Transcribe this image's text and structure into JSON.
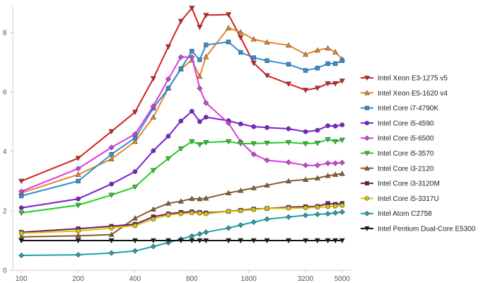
{
  "chart_data": {
    "type": "line",
    "title": "",
    "xlabel": "",
    "ylabel": "",
    "x_scale": "log",
    "xlim": [
      90,
      5600
    ],
    "ylim": [
      0,
      8.9
    ],
    "grid": false,
    "legend_position": "right",
    "x_ticks": [
      {
        "value": 100,
        "label": "100"
      },
      {
        "value": 200,
        "label": "200"
      },
      {
        "value": 400,
        "label": "400"
      },
      {
        "value": 800,
        "label": "800"
      },
      {
        "value": 1600,
        "label": "1600"
      },
      {
        "value": 3200,
        "label": "3200"
      },
      {
        "value": 5000,
        "label": "5000"
      }
    ],
    "y_ticks": [
      {
        "value": 0,
        "label": "0"
      },
      {
        "value": 2,
        "label": "2"
      },
      {
        "value": 4,
        "label": "4"
      },
      {
        "value": 6,
        "label": "6"
      },
      {
        "value": 8,
        "label": "8"
      }
    ],
    "series": [
      {
        "name": "Intel Xeon E3-1275 v5",
        "color": "#d42020",
        "marker": "triangle-down",
        "points": [
          [
            100,
            3.0
          ],
          [
            200,
            3.77
          ],
          [
            300,
            4.67
          ],
          [
            400,
            5.32
          ],
          [
            500,
            6.45
          ],
          [
            600,
            7.52
          ],
          [
            700,
            8.38
          ],
          [
            800,
            8.82
          ],
          [
            880,
            8.18
          ],
          [
            950,
            8.58
          ],
          [
            1250,
            8.6
          ],
          [
            1450,
            7.83
          ],
          [
            1700,
            6.97
          ],
          [
            2000,
            6.55
          ],
          [
            2600,
            6.27
          ],
          [
            3200,
            6.06
          ],
          [
            3700,
            6.13
          ],
          [
            4200,
            6.28
          ],
          [
            4600,
            6.28
          ],
          [
            5000,
            6.37
          ]
        ]
      },
      {
        "name": "Intel Xeon E5-1620 v4",
        "color": "#e88524",
        "marker": "triangle-up",
        "points": [
          [
            100,
            2.6
          ],
          [
            200,
            3.22
          ],
          [
            300,
            3.74
          ],
          [
            400,
            4.33
          ],
          [
            500,
            5.15
          ],
          [
            600,
            6.12
          ],
          [
            700,
            6.77
          ],
          [
            800,
            7.07
          ],
          [
            880,
            6.52
          ],
          [
            950,
            7.18
          ],
          [
            1250,
            8.15
          ],
          [
            1450,
            8.01
          ],
          [
            1700,
            7.77
          ],
          [
            2000,
            7.67
          ],
          [
            2600,
            7.57
          ],
          [
            3200,
            7.26
          ],
          [
            3700,
            7.4
          ],
          [
            4200,
            7.47
          ],
          [
            4600,
            7.34
          ],
          [
            5000,
            7.1
          ]
        ]
      },
      {
        "name": "Intel Core i7-4790K",
        "color": "#2f8fd8",
        "marker": "square",
        "points": [
          [
            100,
            2.5
          ],
          [
            200,
            3.0
          ],
          [
            300,
            3.9
          ],
          [
            400,
            4.45
          ],
          [
            500,
            5.45
          ],
          [
            600,
            6.12
          ],
          [
            700,
            6.78
          ],
          [
            800,
            7.37
          ],
          [
            880,
            7.08
          ],
          [
            950,
            7.58
          ],
          [
            1250,
            7.68
          ],
          [
            1450,
            7.33
          ],
          [
            1700,
            7.15
          ],
          [
            2000,
            7.05
          ],
          [
            2600,
            6.93
          ],
          [
            3200,
            6.72
          ],
          [
            3700,
            6.8
          ],
          [
            4200,
            6.95
          ],
          [
            4600,
            6.95
          ],
          [
            5000,
            7.05
          ]
        ]
      },
      {
        "name": "Intel Core i5-4590",
        "color": "#7a1fd1",
        "marker": "circle",
        "points": [
          [
            100,
            2.1
          ],
          [
            200,
            2.4
          ],
          [
            300,
            2.9
          ],
          [
            400,
            3.32
          ],
          [
            500,
            4.02
          ],
          [
            600,
            4.51
          ],
          [
            700,
            5.02
          ],
          [
            800,
            5.35
          ],
          [
            880,
            5.0
          ],
          [
            950,
            5.15
          ],
          [
            1250,
            5.03
          ],
          [
            1450,
            4.92
          ],
          [
            1700,
            4.83
          ],
          [
            2000,
            4.8
          ],
          [
            2600,
            4.76
          ],
          [
            3200,
            4.66
          ],
          [
            3700,
            4.71
          ],
          [
            4200,
            4.86
          ],
          [
            4600,
            4.85
          ],
          [
            5000,
            4.89
          ]
        ]
      },
      {
        "name": "Intel Core i5-6500",
        "color": "#dd38e0",
        "marker": "diamond",
        "points": [
          [
            100,
            2.65
          ],
          [
            200,
            3.42
          ],
          [
            300,
            4.13
          ],
          [
            400,
            4.58
          ],
          [
            500,
            5.52
          ],
          [
            600,
            6.43
          ],
          [
            700,
            7.17
          ],
          [
            800,
            7.17
          ],
          [
            880,
            6.12
          ],
          [
            950,
            5.63
          ],
          [
            1250,
            4.95
          ],
          [
            1450,
            4.32
          ],
          [
            1700,
            3.9
          ],
          [
            2000,
            3.7
          ],
          [
            2600,
            3.63
          ],
          [
            3200,
            3.53
          ],
          [
            3700,
            3.53
          ],
          [
            4200,
            3.6
          ],
          [
            4600,
            3.6
          ],
          [
            5000,
            3.62
          ]
        ]
      },
      {
        "name": "Intel Core i5-3570",
        "color": "#22cc22",
        "marker": "triangle-down",
        "points": [
          [
            100,
            1.93
          ],
          [
            200,
            2.19
          ],
          [
            300,
            2.53
          ],
          [
            400,
            2.8
          ],
          [
            500,
            3.36
          ],
          [
            600,
            3.76
          ],
          [
            700,
            4.09
          ],
          [
            800,
            4.33
          ],
          [
            880,
            4.23
          ],
          [
            950,
            4.3
          ],
          [
            1250,
            4.33
          ],
          [
            1450,
            4.26
          ],
          [
            1700,
            4.26
          ],
          [
            2000,
            4.28
          ],
          [
            2600,
            4.3
          ],
          [
            3200,
            4.26
          ],
          [
            3700,
            4.28
          ],
          [
            4200,
            4.4
          ],
          [
            4600,
            4.33
          ],
          [
            5000,
            4.38
          ]
        ]
      },
      {
        "name": "Intel Core i3-2120",
        "color": "#8b5a2b",
        "marker": "triangle-up",
        "points": [
          [
            100,
            1.12
          ],
          [
            200,
            1.16
          ],
          [
            300,
            1.2
          ],
          [
            400,
            1.75
          ],
          [
            500,
            2.05
          ],
          [
            600,
            2.25
          ],
          [
            700,
            2.32
          ],
          [
            800,
            2.41
          ],
          [
            880,
            2.4
          ],
          [
            950,
            2.42
          ],
          [
            1250,
            2.6
          ],
          [
            1450,
            2.68
          ],
          [
            1700,
            2.77
          ],
          [
            2000,
            2.86
          ],
          [
            2600,
            3.0
          ],
          [
            3200,
            3.05
          ],
          [
            3700,
            3.1
          ],
          [
            4200,
            3.18
          ],
          [
            4600,
            3.22
          ],
          [
            5000,
            3.25
          ]
        ]
      },
      {
        "name": "Intel Core i3-3120M",
        "color": "#6b1a5c",
        "marker": "square",
        "points": [
          [
            100,
            1.28
          ],
          [
            200,
            1.4
          ],
          [
            300,
            1.48
          ],
          [
            400,
            1.55
          ],
          [
            500,
            1.8
          ],
          [
            600,
            1.9
          ],
          [
            700,
            1.95
          ],
          [
            800,
            1.97
          ],
          [
            880,
            1.95
          ],
          [
            950,
            1.93
          ],
          [
            1250,
            1.98
          ],
          [
            1450,
            2.02
          ],
          [
            1700,
            2.06
          ],
          [
            2000,
            2.08
          ],
          [
            2600,
            2.12
          ],
          [
            3200,
            2.14
          ],
          [
            3700,
            2.15
          ],
          [
            4200,
            2.25
          ],
          [
            4600,
            2.22
          ],
          [
            5000,
            2.25
          ]
        ]
      },
      {
        "name": "Intel Core i5-3317U",
        "color": "#d9c300",
        "marker": "circle",
        "points": [
          [
            100,
            1.25
          ],
          [
            200,
            1.32
          ],
          [
            300,
            1.42
          ],
          [
            400,
            1.5
          ],
          [
            500,
            1.72
          ],
          [
            600,
            1.86
          ],
          [
            700,
            1.9
          ],
          [
            800,
            1.93
          ],
          [
            880,
            1.92
          ],
          [
            950,
            1.9
          ],
          [
            1250,
            1.98
          ],
          [
            1450,
            2.0
          ],
          [
            1700,
            2.04
          ],
          [
            2000,
            2.08
          ],
          [
            2600,
            2.09
          ],
          [
            3200,
            2.1
          ],
          [
            3700,
            2.12
          ],
          [
            4200,
            2.14
          ],
          [
            4600,
            2.16
          ],
          [
            5000,
            2.18
          ]
        ]
      },
      {
        "name": "Intel Atom C2758",
        "color": "#1aa3a8",
        "marker": "diamond",
        "points": [
          [
            100,
            0.5
          ],
          [
            200,
            0.52
          ],
          [
            300,
            0.58
          ],
          [
            400,
            0.65
          ],
          [
            500,
            0.8
          ],
          [
            600,
            0.93
          ],
          [
            700,
            1.05
          ],
          [
            800,
            1.15
          ],
          [
            880,
            1.22
          ],
          [
            950,
            1.28
          ],
          [
            1250,
            1.42
          ],
          [
            1450,
            1.52
          ],
          [
            1700,
            1.62
          ],
          [
            2000,
            1.72
          ],
          [
            2600,
            1.79
          ],
          [
            3200,
            1.85
          ],
          [
            3700,
            1.88
          ],
          [
            4200,
            1.9
          ],
          [
            4600,
            1.93
          ],
          [
            5000,
            1.96
          ]
        ]
      },
      {
        "name": "Intel Pentium Dual-Core E5300",
        "color": "#111111",
        "marker": "triangle-down",
        "points": [
          [
            100,
            1.0
          ],
          [
            200,
            1.0
          ],
          [
            300,
            1.0
          ],
          [
            400,
            1.0
          ],
          [
            500,
            1.0
          ],
          [
            600,
            1.0
          ],
          [
            700,
            1.0
          ],
          [
            800,
            1.0
          ],
          [
            880,
            1.0
          ],
          [
            950,
            1.0
          ],
          [
            1250,
            1.0
          ],
          [
            1450,
            1.0
          ],
          [
            1700,
            1.0
          ],
          [
            2000,
            1.0
          ],
          [
            2600,
            1.0
          ],
          [
            3200,
            1.0
          ],
          [
            3700,
            1.0
          ],
          [
            4200,
            1.0
          ],
          [
            4600,
            1.0
          ],
          [
            5000,
            1.0
          ]
        ]
      }
    ]
  }
}
